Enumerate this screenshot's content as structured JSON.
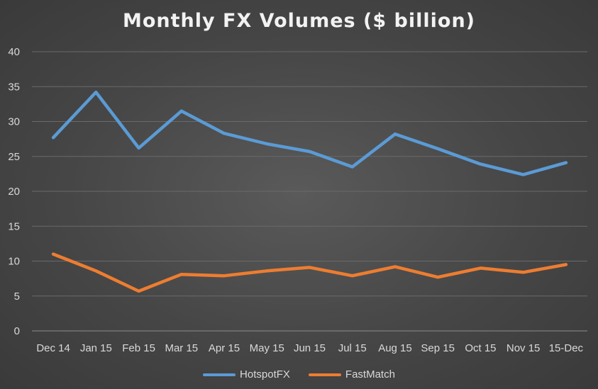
{
  "chart_data": {
    "type": "line",
    "title": "Monthly FX Volumes ($ billion)",
    "xlabel": "",
    "ylabel": "",
    "categories": [
      "Dec 14",
      "Jan 15",
      "Feb 15",
      "Mar 15",
      "Apr 15",
      "May 15",
      "Jun 15",
      "Jul 15",
      "Aug 15",
      "Sep 15",
      "Oct 15",
      "Nov 15",
      "15-Dec"
    ],
    "ylim": [
      0,
      40
    ],
    "yticks": [
      "0",
      "5",
      "10",
      "15",
      "20",
      "25",
      "30",
      "35",
      "40"
    ],
    "grid": true,
    "legend_position": "bottom",
    "series": [
      {
        "name": "HotspotFX",
        "color": "#5b9bd5",
        "values": [
          27.7,
          34.2,
          26.2,
          31.5,
          28.3,
          26.8,
          25.7,
          23.5,
          28.2,
          26.1,
          23.9,
          22.4,
          24.1
        ]
      },
      {
        "name": "FastMatch",
        "color": "#ed7d31",
        "values": [
          11.0,
          8.6,
          5.7,
          8.1,
          7.9,
          8.6,
          9.1,
          7.9,
          9.2,
          7.7,
          9.0,
          8.4,
          9.5
        ]
      }
    ]
  }
}
